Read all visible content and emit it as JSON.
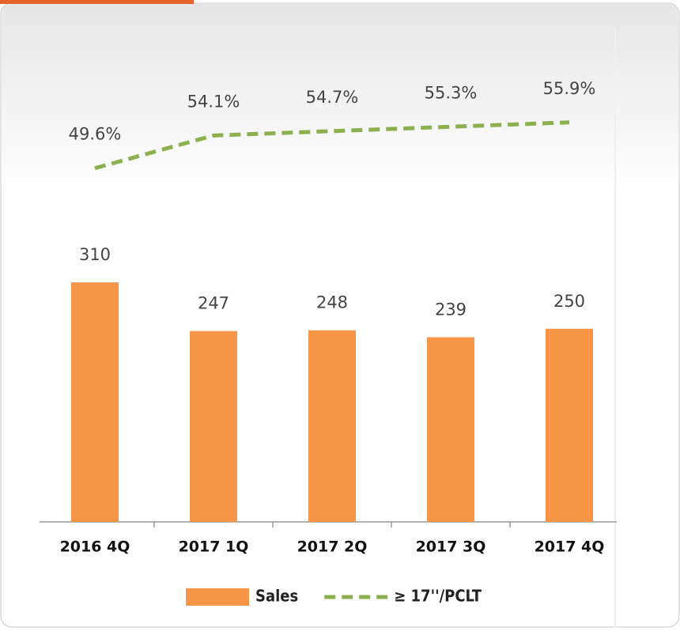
{
  "chart_data": {
    "type": "bar",
    "categories": [
      "2016 4Q",
      "2017 1Q",
      "2017 2Q",
      "2017 3Q",
      "2017 4Q"
    ],
    "series": [
      {
        "name": "Sales",
        "type": "bar",
        "color": "#f79646",
        "values": [
          310,
          247,
          248,
          239,
          250
        ]
      },
      {
        "name": "≥ 17''/PCLT",
        "type": "line",
        "axis": "y2",
        "color": "#8db04f",
        "values": [
          49.6,
          54.1,
          54.7,
          55.3,
          55.9
        ],
        "value_labels": [
          "49.6%",
          "54.1%",
          "54.7%",
          "55.3%",
          "55.9%"
        ]
      }
    ],
    "ylim": [
      0,
      650
    ],
    "y2lim": [
      1,
      70
    ],
    "legend": "bottom"
  }
}
